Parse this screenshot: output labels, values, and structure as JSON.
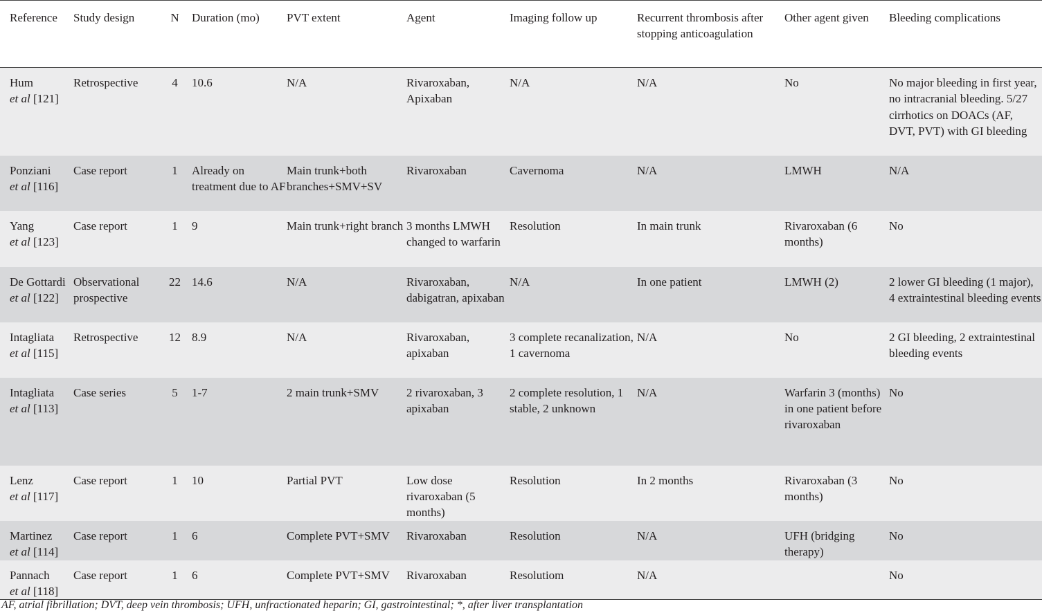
{
  "headers": [
    "Reference",
    "Study design",
    "N",
    "Duration (mo)",
    "PVT extent",
    "Agent",
    "Imaging follow up",
    "Recurrent thrombosis after stopping anticoagulation",
    "Other agent given",
    "Bleeding complications"
  ],
  "rows": [
    {
      "author": "Hum",
      "ref": "[121]",
      "design": "Retrospective",
      "n": "4",
      "duration": "10.6",
      "pvt_extent": "N/A",
      "agent": "Rivaroxaban, Apixaban",
      "imaging": "N/A",
      "recurrent": "N/A",
      "other_agent": "No",
      "bleeding": "No major bleeding in first year, no intracranial bleeding. 5/27 cirrhotics on DOACs (AF, DVT, PVT) with GI bleeding"
    },
    {
      "author": "Ponziani",
      "ref": "[116]",
      "design": "Case report",
      "n": "1",
      "duration": "Already on treatment due to AF",
      "pvt_extent": "Main trunk+both branches+SMV+SV",
      "agent": "Rivaroxaban",
      "imaging": "Cavernoma",
      "recurrent": "N/A",
      "other_agent": "LMWH",
      "bleeding": "N/A"
    },
    {
      "author": "Yang",
      "ref": "[123]",
      "design": "Case report",
      "n": "1",
      "duration": "9",
      "pvt_extent": "Main trunk+right branch",
      "agent": "3 months LMWH changed to warfarin",
      "imaging": "Resolution",
      "recurrent": "In main trunk",
      "other_agent": "Rivaroxaban (6 months)",
      "bleeding": "No"
    },
    {
      "author": "De Gottardi",
      "ref": "[122]",
      "design": "Observational prospective",
      "n": "22",
      "duration": "14.6",
      "pvt_extent": "N/A",
      "agent": "Rivaroxaban, dabigatran, apixaban",
      "imaging": "N/A",
      "recurrent": "In one patient",
      "other_agent": "LMWH (2)",
      "bleeding": "2 lower GI bleeding (1 major), 4 extraintestinal bleeding events"
    },
    {
      "author": "Intagliata",
      "ref": "[115]",
      "design": "Retrospective",
      "n": "12",
      "duration": "8.9",
      "pvt_extent": "N/A",
      "agent": "Rivaroxaban, apixaban",
      "imaging": "3 complete recanalization, 1 cavernoma",
      "recurrent": "N/A",
      "other_agent": "No",
      "bleeding": "2 GI bleeding, 2 extraintestinal bleeding events"
    },
    {
      "author": "Intagliata",
      "ref": "[113]",
      "design": "Case series",
      "n": "5",
      "duration": "1-7",
      "pvt_extent": "2 main trunk+SMV",
      "agent": "2 rivaroxaban, 3 apixaban",
      "imaging": "2 complete resolution, 1 stable, 2 unknown",
      "recurrent": "N/A",
      "other_agent": "Warfarin 3 (months) in one patient before rivaroxaban",
      "bleeding": "No"
    },
    {
      "author": "Lenz",
      "ref": "[117]",
      "design": "Case report",
      "n": "1",
      "duration": "10",
      "pvt_extent": "Partial PVT",
      "agent": "Low dose rivaroxaban (5 months)",
      "imaging": "Resolution",
      "recurrent": "In 2 months",
      "other_agent": "Rivaroxaban (3 months)",
      "bleeding": "No"
    },
    {
      "author": "Martinez",
      "ref": "[114]",
      "design": "Case report",
      "n": "1",
      "duration": "6",
      "pvt_extent": "Complete PVT+SMV",
      "agent": "Rivaroxaban",
      "imaging": "Resolution",
      "recurrent": "N/A",
      "other_agent": "UFH (bridging therapy)",
      "bleeding": "No"
    },
    {
      "author": "Pannach",
      "ref": "[118]",
      "design": "Case report",
      "n": "1",
      "duration": "6",
      "pvt_extent": "Complete PVT+SMV",
      "agent": "Rivaroxaban",
      "imaging": "Resolutiom",
      "recurrent": "N/A",
      "other_agent": "",
      "bleeding": "No"
    }
  ],
  "et_al": "et al",
  "footnote": "AF, atrial fibrillation; DVT, deep vein thrombosis; UFH, unfractionated heparin; GI, gastrointestinal; *, after liver transplantation"
}
